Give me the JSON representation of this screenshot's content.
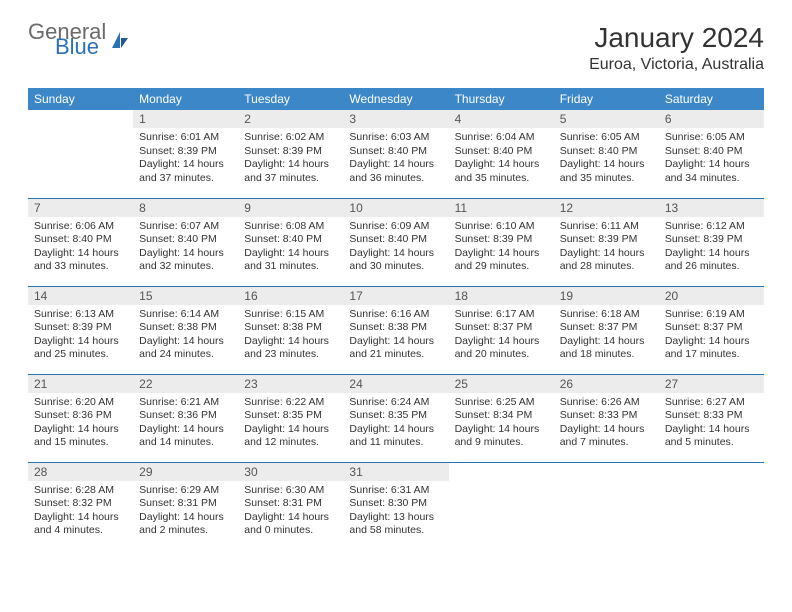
{
  "logo": {
    "general": "General",
    "blue": "Blue"
  },
  "header": {
    "title": "January 2024",
    "location": "Euroa, Victoria, Australia"
  },
  "colors": {
    "header_bg": "#3b87c8",
    "header_fg": "#ffffff",
    "rule": "#2a71b8",
    "daynum_bg": "#ececec",
    "text": "#333333",
    "logo_general": "#6b6b6b",
    "logo_blue": "#2a71b8"
  },
  "typography": {
    "title_fontsize": 28,
    "location_fontsize": 16,
    "th_fontsize": 12,
    "body_fontsize": 10.5
  },
  "dayNames": [
    "Sunday",
    "Monday",
    "Tuesday",
    "Wednesday",
    "Thursday",
    "Friday",
    "Saturday"
  ],
  "weeks": [
    [
      {
        "empty": true
      },
      {
        "day": "1",
        "sunrise": "Sunrise: 6:01 AM",
        "sunset": "Sunset: 8:39 PM",
        "daylight": "Daylight: 14 hours and 37 minutes."
      },
      {
        "day": "2",
        "sunrise": "Sunrise: 6:02 AM",
        "sunset": "Sunset: 8:39 PM",
        "daylight": "Daylight: 14 hours and 37 minutes."
      },
      {
        "day": "3",
        "sunrise": "Sunrise: 6:03 AM",
        "sunset": "Sunset: 8:40 PM",
        "daylight": "Daylight: 14 hours and 36 minutes."
      },
      {
        "day": "4",
        "sunrise": "Sunrise: 6:04 AM",
        "sunset": "Sunset: 8:40 PM",
        "daylight": "Daylight: 14 hours and 35 minutes."
      },
      {
        "day": "5",
        "sunrise": "Sunrise: 6:05 AM",
        "sunset": "Sunset: 8:40 PM",
        "daylight": "Daylight: 14 hours and 35 minutes."
      },
      {
        "day": "6",
        "sunrise": "Sunrise: 6:05 AM",
        "sunset": "Sunset: 8:40 PM",
        "daylight": "Daylight: 14 hours and 34 minutes."
      }
    ],
    [
      {
        "day": "7",
        "sunrise": "Sunrise: 6:06 AM",
        "sunset": "Sunset: 8:40 PM",
        "daylight": "Daylight: 14 hours and 33 minutes."
      },
      {
        "day": "8",
        "sunrise": "Sunrise: 6:07 AM",
        "sunset": "Sunset: 8:40 PM",
        "daylight": "Daylight: 14 hours and 32 minutes."
      },
      {
        "day": "9",
        "sunrise": "Sunrise: 6:08 AM",
        "sunset": "Sunset: 8:40 PM",
        "daylight": "Daylight: 14 hours and 31 minutes."
      },
      {
        "day": "10",
        "sunrise": "Sunrise: 6:09 AM",
        "sunset": "Sunset: 8:40 PM",
        "daylight": "Daylight: 14 hours and 30 minutes."
      },
      {
        "day": "11",
        "sunrise": "Sunrise: 6:10 AM",
        "sunset": "Sunset: 8:39 PM",
        "daylight": "Daylight: 14 hours and 29 minutes."
      },
      {
        "day": "12",
        "sunrise": "Sunrise: 6:11 AM",
        "sunset": "Sunset: 8:39 PM",
        "daylight": "Daylight: 14 hours and 28 minutes."
      },
      {
        "day": "13",
        "sunrise": "Sunrise: 6:12 AM",
        "sunset": "Sunset: 8:39 PM",
        "daylight": "Daylight: 14 hours and 26 minutes."
      }
    ],
    [
      {
        "day": "14",
        "sunrise": "Sunrise: 6:13 AM",
        "sunset": "Sunset: 8:39 PM",
        "daylight": "Daylight: 14 hours and 25 minutes."
      },
      {
        "day": "15",
        "sunrise": "Sunrise: 6:14 AM",
        "sunset": "Sunset: 8:38 PM",
        "daylight": "Daylight: 14 hours and 24 minutes."
      },
      {
        "day": "16",
        "sunrise": "Sunrise: 6:15 AM",
        "sunset": "Sunset: 8:38 PM",
        "daylight": "Daylight: 14 hours and 23 minutes."
      },
      {
        "day": "17",
        "sunrise": "Sunrise: 6:16 AM",
        "sunset": "Sunset: 8:38 PM",
        "daylight": "Daylight: 14 hours and 21 minutes."
      },
      {
        "day": "18",
        "sunrise": "Sunrise: 6:17 AM",
        "sunset": "Sunset: 8:37 PM",
        "daylight": "Daylight: 14 hours and 20 minutes."
      },
      {
        "day": "19",
        "sunrise": "Sunrise: 6:18 AM",
        "sunset": "Sunset: 8:37 PM",
        "daylight": "Daylight: 14 hours and 18 minutes."
      },
      {
        "day": "20",
        "sunrise": "Sunrise: 6:19 AM",
        "sunset": "Sunset: 8:37 PM",
        "daylight": "Daylight: 14 hours and 17 minutes."
      }
    ],
    [
      {
        "day": "21",
        "sunrise": "Sunrise: 6:20 AM",
        "sunset": "Sunset: 8:36 PM",
        "daylight": "Daylight: 14 hours and 15 minutes."
      },
      {
        "day": "22",
        "sunrise": "Sunrise: 6:21 AM",
        "sunset": "Sunset: 8:36 PM",
        "daylight": "Daylight: 14 hours and 14 minutes."
      },
      {
        "day": "23",
        "sunrise": "Sunrise: 6:22 AM",
        "sunset": "Sunset: 8:35 PM",
        "daylight": "Daylight: 14 hours and 12 minutes."
      },
      {
        "day": "24",
        "sunrise": "Sunrise: 6:24 AM",
        "sunset": "Sunset: 8:35 PM",
        "daylight": "Daylight: 14 hours and 11 minutes."
      },
      {
        "day": "25",
        "sunrise": "Sunrise: 6:25 AM",
        "sunset": "Sunset: 8:34 PM",
        "daylight": "Daylight: 14 hours and 9 minutes."
      },
      {
        "day": "26",
        "sunrise": "Sunrise: 6:26 AM",
        "sunset": "Sunset: 8:33 PM",
        "daylight": "Daylight: 14 hours and 7 minutes."
      },
      {
        "day": "27",
        "sunrise": "Sunrise: 6:27 AM",
        "sunset": "Sunset: 8:33 PM",
        "daylight": "Daylight: 14 hours and 5 minutes."
      }
    ],
    [
      {
        "day": "28",
        "sunrise": "Sunrise: 6:28 AM",
        "sunset": "Sunset: 8:32 PM",
        "daylight": "Daylight: 14 hours and 4 minutes."
      },
      {
        "day": "29",
        "sunrise": "Sunrise: 6:29 AM",
        "sunset": "Sunset: 8:31 PM",
        "daylight": "Daylight: 14 hours and 2 minutes."
      },
      {
        "day": "30",
        "sunrise": "Sunrise: 6:30 AM",
        "sunset": "Sunset: 8:31 PM",
        "daylight": "Daylight: 14 hours and 0 minutes."
      },
      {
        "day": "31",
        "sunrise": "Sunrise: 6:31 AM",
        "sunset": "Sunset: 8:30 PM",
        "daylight": "Daylight: 13 hours and 58 minutes."
      },
      {
        "empty": true
      },
      {
        "empty": true
      },
      {
        "empty": true
      }
    ]
  ]
}
